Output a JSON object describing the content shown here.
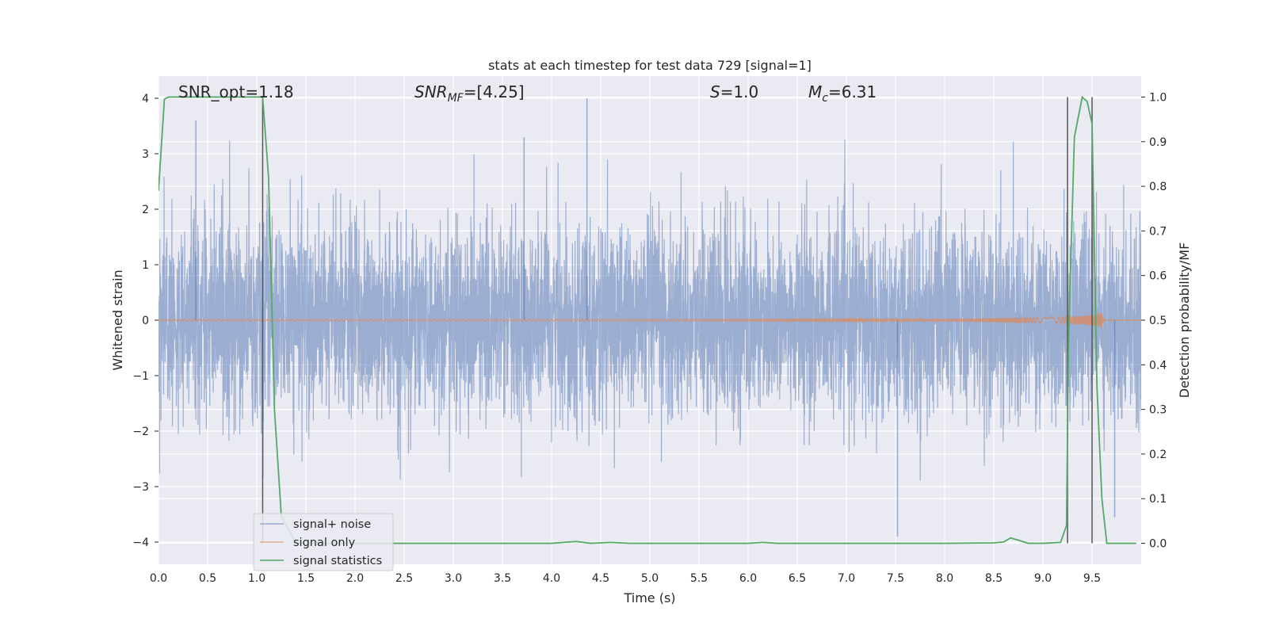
{
  "chart_data": {
    "type": "line",
    "title": "stats at each timestep for test data 729 [signal=1]",
    "xlabel": "Time (s)",
    "ylabel_left": "Whitened strain",
    "ylabel_right": "Detection probability/MF",
    "xlim": [
      0.0,
      10.0
    ],
    "ylim_left": [
      -4.4,
      4.4
    ],
    "ylim_right": [
      -0.047,
      1.047
    ],
    "x_ticks": [
      "0.0",
      "0.5",
      "1.0",
      "1.5",
      "2.0",
      "2.5",
      "3.0",
      "3.5",
      "4.0",
      "4.5",
      "5.0",
      "5.5",
      "6.0",
      "6.5",
      "7.0",
      "7.5",
      "8.0",
      "8.5",
      "9.0",
      "9.5"
    ],
    "x_tick_values": [
      0.0,
      0.5,
      1.0,
      1.5,
      2.0,
      2.5,
      3.0,
      3.5,
      4.0,
      4.5,
      5.0,
      5.5,
      6.0,
      6.5,
      7.0,
      7.5,
      8.0,
      8.5,
      9.0,
      9.5
    ],
    "y_left_ticks": [
      "−4",
      "−3",
      "−2",
      "−1",
      "0",
      "1",
      "2",
      "3",
      "4"
    ],
    "y_left_tick_values": [
      -4,
      -3,
      -2,
      -1,
      0,
      1,
      2,
      3,
      4
    ],
    "y_right_ticks": [
      "0.0",
      "0.1",
      "0.2",
      "0.3",
      "0.4",
      "0.5",
      "0.6",
      "0.7",
      "0.8",
      "0.9",
      "1.0"
    ],
    "y_right_tick_values": [
      0.0,
      0.1,
      0.2,
      0.3,
      0.4,
      0.5,
      0.6,
      0.7,
      0.8,
      0.9,
      1.0
    ],
    "grid": true,
    "legend_position": "lower-left",
    "annotations": {
      "snr_opt": "SNR_opt=1.18",
      "snr_mf_label": "SNR",
      "snr_mf_sub": "MF",
      "snr_mf_value": "=[4.25]",
      "s_label": "S",
      "s_value": "=1.0",
      "mc_label": "M",
      "mc_sub": "c",
      "mc_value": "=6.31"
    },
    "vertical_lines_x": [
      1.06,
      9.25,
      9.5
    ],
    "series": [
      {
        "name": "signal+ noise",
        "color": "#4c72b0",
        "axis": "left",
        "noise_sigma": 0.85,
        "noise_extremes": [
          -3.9,
          4.0
        ]
      },
      {
        "name": "signal only",
        "color": "#dd8452",
        "axis": "left",
        "x": [
          0.0,
          2.0,
          4.0,
          6.0,
          8.0,
          8.8,
          9.2,
          9.4,
          9.5,
          9.55,
          9.6,
          9.62
        ],
        "amplitude": [
          0.01,
          0.01,
          0.012,
          0.015,
          0.02,
          0.04,
          0.06,
          0.08,
          0.1,
          0.12,
          0.14,
          0.0
        ]
      },
      {
        "name": "signal statistics",
        "color": "#55a868",
        "axis": "right",
        "x": [
          0.0,
          0.06,
          0.1,
          0.2,
          0.4,
          0.6,
          0.8,
          1.0,
          1.06,
          1.12,
          1.18,
          1.25,
          1.4,
          2.0,
          3.0,
          4.0,
          4.25,
          4.4,
          4.6,
          4.8,
          5.0,
          6.0,
          6.15,
          6.3,
          7.0,
          8.0,
          8.5,
          8.6,
          8.67,
          8.75,
          8.85,
          9.0,
          9.18,
          9.24,
          9.26,
          9.32,
          9.4,
          9.45,
          9.5,
          9.55,
          9.6,
          9.65,
          9.8,
          9.95
        ],
        "y": [
          0.79,
          0.995,
          1.0,
          1.0,
          1.0,
          1.0,
          1.0,
          1.0,
          1.0,
          0.82,
          0.3,
          0.06,
          0.0,
          0.0,
          0.0,
          0.0,
          0.004,
          0.0,
          0.002,
          0.0,
          0.0,
          0.0,
          0.002,
          0.0,
          0.0,
          0.0,
          0.001,
          0.003,
          0.012,
          0.007,
          0.0,
          0.0,
          0.002,
          0.04,
          0.45,
          0.91,
          1.0,
          0.99,
          0.94,
          0.35,
          0.1,
          0.0,
          0.0,
          0.0
        ]
      }
    ]
  }
}
